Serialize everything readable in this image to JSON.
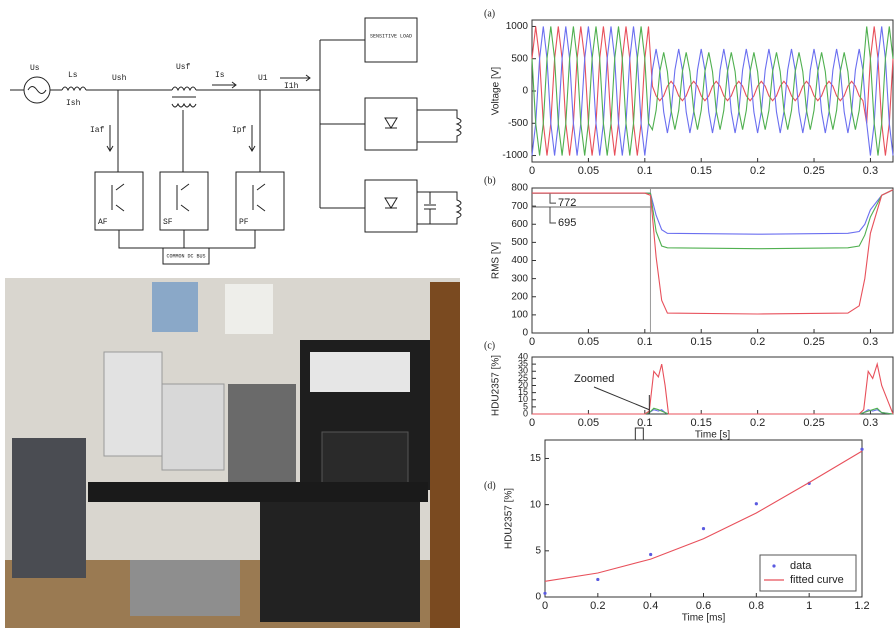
{
  "diagram": {
    "labels": [
      "Us",
      "Ls",
      "Ish",
      "Ush",
      "Usf",
      "Is",
      "U1",
      "I1h",
      "Iaf",
      "Ipf",
      "AF",
      "SF",
      "PF",
      "COMMON DC BUS",
      "SENSITIVE LOAD"
    ]
  },
  "chart_data": [
    {
      "type": "line",
      "label": "(a)",
      "ylabel": "Voltage [V]",
      "x": [
        0,
        0.0033,
        0.0067,
        0.01,
        0.0133,
        0.0167,
        0.02,
        0.0233,
        0.0267,
        0.03,
        0.0333,
        0.0367,
        0.04,
        0.0433,
        0.0467,
        0.05,
        0.0533,
        0.0567,
        0.06,
        0.0633,
        0.0667,
        0.07,
        0.0733,
        0.0767,
        0.08,
        0.0833,
        0.0867,
        0.09,
        0.0933,
        0.0967,
        0.1,
        0.1033,
        0.1067,
        0.11,
        0.1133,
        0.1167,
        0.12,
        0.1233,
        0.1267,
        0.13,
        0.1333,
        0.1367,
        0.14,
        0.1433,
        0.1467,
        0.15,
        0.1533,
        0.1567,
        0.16,
        0.1633,
        0.1667,
        0.17,
        0.1733,
        0.1767,
        0.18,
        0.1833,
        0.1867,
        0.19,
        0.1933,
        0.1967,
        0.2,
        0.2033,
        0.2067,
        0.21,
        0.2133,
        0.2167,
        0.22,
        0.2233,
        0.2267,
        0.23,
        0.2333,
        0.2367,
        0.24,
        0.2433,
        0.2467,
        0.25,
        0.2533,
        0.2567,
        0.26,
        0.2633,
        0.2667,
        0.27,
        0.2733,
        0.2767,
        0.28,
        0.2833,
        0.2867,
        0.29,
        0.2933,
        0.2967,
        0.3,
        0.3033,
        0.3067,
        0.31,
        0.3133,
        0.3167,
        0.32
      ],
      "series": [
        {
          "color": "#e8505b",
          "values": [
            500,
            1000,
            500,
            -500,
            -1000,
            -500,
            500,
            1000,
            500,
            -500,
            -1000,
            -500,
            500,
            1000,
            500,
            -500,
            -1000,
            -500,
            500,
            1000,
            500,
            -500,
            -1000,
            -500,
            500,
            1000,
            500,
            -500,
            -1000,
            -500,
            500,
            1000,
            75,
            -75,
            -150,
            -75,
            75,
            150,
            75,
            -75,
            -150,
            -75,
            75,
            150,
            75,
            -75,
            -150,
            -75,
            75,
            150,
            75,
            -75,
            -150,
            -75,
            75,
            150,
            75,
            -75,
            -150,
            -75,
            75,
            150,
            75,
            -75,
            -150,
            -75,
            75,
            150,
            75,
            -75,
            -150,
            -75,
            75,
            150,
            75,
            -75,
            -150,
            -75,
            75,
            150,
            75,
            -75,
            -150,
            -75,
            75,
            150,
            75,
            -75,
            -150,
            -500,
            500,
            1000,
            500,
            -500,
            -1000,
            -500,
            500
          ]
        },
        {
          "color": "#6b6ff0",
          "values": [
            -1000,
            -500,
            500,
            1000,
            500,
            -500,
            -1000,
            -500,
            500,
            1000,
            500,
            -500,
            -1000,
            -500,
            500,
            1000,
            500,
            -500,
            -1000,
            -500,
            500,
            1000,
            500,
            -500,
            -1000,
            -500,
            500,
            1000,
            500,
            -500,
            -1000,
            -500,
            325,
            650,
            325,
            -325,
            -650,
            -325,
            325,
            650,
            325,
            -325,
            -650,
            -325,
            325,
            650,
            325,
            -325,
            -650,
            -325,
            325,
            650,
            325,
            -325,
            -650,
            -325,
            325,
            650,
            325,
            -325,
            -650,
            -325,
            325,
            650,
            325,
            -325,
            -650,
            -325,
            325,
            650,
            325,
            -325,
            -650,
            -325,
            325,
            650,
            325,
            -325,
            -650,
            -325,
            325,
            650,
            325,
            -325,
            -650,
            -325,
            325,
            650,
            325,
            -500,
            -1000,
            -500,
            500,
            1000,
            500,
            -500,
            -1000
          ]
        },
        {
          "color": "#50b050",
          "values": [
            500,
            -500,
            -1000,
            -500,
            500,
            1000,
            500,
            -500,
            -1000,
            -500,
            500,
            1000,
            500,
            -500,
            -1000,
            -500,
            500,
            1000,
            500,
            -500,
            -1000,
            -500,
            500,
            1000,
            500,
            -500,
            -1000,
            -500,
            500,
            1000,
            500,
            -500,
            -600,
            -300,
            300,
            600,
            300,
            -300,
            -600,
            -300,
            300,
            600,
            300,
            -300,
            -600,
            -300,
            300,
            600,
            300,
            -300,
            -600,
            -300,
            300,
            600,
            300,
            -300,
            -600,
            -300,
            300,
            600,
            300,
            -300,
            -600,
            -300,
            300,
            600,
            300,
            -300,
            -600,
            -300,
            300,
            600,
            300,
            -300,
            -600,
            -300,
            300,
            600,
            300,
            -300,
            -600,
            -300,
            300,
            600,
            300,
            -300,
            -600,
            -300,
            300,
            1000,
            500,
            -500,
            -1000,
            -500,
            500,
            1000,
            500
          ]
        }
      ],
      "xlim": [
        0,
        0.32
      ],
      "xticks": [
        0,
        0.05,
        0.1,
        0.15,
        0.2,
        0.25,
        0.3
      ],
      "ylim": [
        -1100,
        1100
      ],
      "yticks": [
        -1000,
        -500,
        0,
        500,
        1000
      ]
    },
    {
      "type": "line",
      "label": "(b)",
      "ylabel": "RMS [V]",
      "x": [
        0,
        0.1,
        0.105,
        0.11,
        0.115,
        0.12,
        0.2,
        0.28,
        0.29,
        0.295,
        0.3,
        0.31,
        0.32
      ],
      "series": [
        {
          "color": "#6b6ff0",
          "values": [
            772,
            772,
            770,
            650,
            570,
            550,
            545,
            550,
            560,
            600,
            680,
            760,
            790
          ]
        },
        {
          "color": "#50b050",
          "values": [
            772,
            772,
            770,
            560,
            480,
            470,
            465,
            470,
            480,
            540,
            640,
            760,
            790
          ]
        },
        {
          "color": "#e8505b",
          "values": [
            772,
            772,
            760,
            420,
            180,
            110,
            105,
            110,
            150,
            300,
            550,
            760,
            790
          ]
        }
      ],
      "reference_levels": [
        772,
        695
      ],
      "marker_x": 0.105,
      "xlim": [
        0,
        0.32
      ],
      "xticks": [
        0,
        0.05,
        0.1,
        0.15,
        0.2,
        0.25,
        0.3
      ],
      "ylim": [
        0,
        800
      ],
      "yticks": [
        0,
        100,
        200,
        300,
        400,
        500,
        600,
        700,
        800
      ]
    },
    {
      "type": "line",
      "label": "(c)",
      "ylabel": "HDU2357 [%]",
      "xlabel": "Time [s]",
      "annotation": "Zoomed",
      "x": [
        0,
        0.1,
        0.104,
        0.108,
        0.112,
        0.115,
        0.118,
        0.121,
        0.29,
        0.294,
        0.298,
        0.302,
        0.306,
        0.31,
        0.32
      ],
      "series": [
        {
          "color": "#6b6ff0",
          "values": [
            0,
            0,
            1,
            3,
            2,
            3,
            1,
            0,
            0,
            1,
            3,
            2,
            3,
            1,
            0
          ]
        },
        {
          "color": "#50b050",
          "values": [
            0,
            0,
            1,
            4,
            3,
            2,
            1,
            0,
            0,
            1,
            2,
            3,
            4,
            1,
            0
          ]
        },
        {
          "color": "#e8505b",
          "values": [
            0,
            0,
            2,
            30,
            26,
            35,
            20,
            0,
            0,
            3,
            30,
            25,
            35,
            20,
            0
          ]
        }
      ],
      "xlim": [
        0,
        0.32
      ],
      "xticks": [
        0,
        0.05,
        0.1,
        0.15,
        0.2,
        0.25,
        0.3
      ],
      "ylim": [
        0,
        40
      ],
      "yticks": [
        0,
        5,
        10,
        15,
        20,
        25,
        30,
        35,
        40
      ]
    },
    {
      "type": "scatter",
      "label": "(d)",
      "ylabel": "HDU2357 [%]",
      "xlabel": "Time [ms]",
      "legend": "lower right",
      "x": [
        0,
        0.2,
        0.4,
        0.6,
        0.8,
        1,
        1.2
      ],
      "series": [
        {
          "name": "data",
          "mode": "markers",
          "color": "#5a5ae0",
          "values": [
            0.4,
            1.9,
            4.6,
            7.4,
            10.1,
            12.3,
            16
          ]
        },
        {
          "name": "fitted curve",
          "mode": "line",
          "color": "#e8505b",
          "values": [
            1.7,
            2.6,
            4.1,
            6.3,
            9.1,
            12.4,
            15.8
          ]
        }
      ],
      "xlim": [
        0,
        1.2
      ],
      "xticks": [
        0,
        0.2,
        0.4,
        0.6,
        0.8,
        1,
        1.2
      ],
      "ylim": [
        0,
        17
      ],
      "yticks": [
        0,
        5,
        10,
        15
      ]
    }
  ]
}
